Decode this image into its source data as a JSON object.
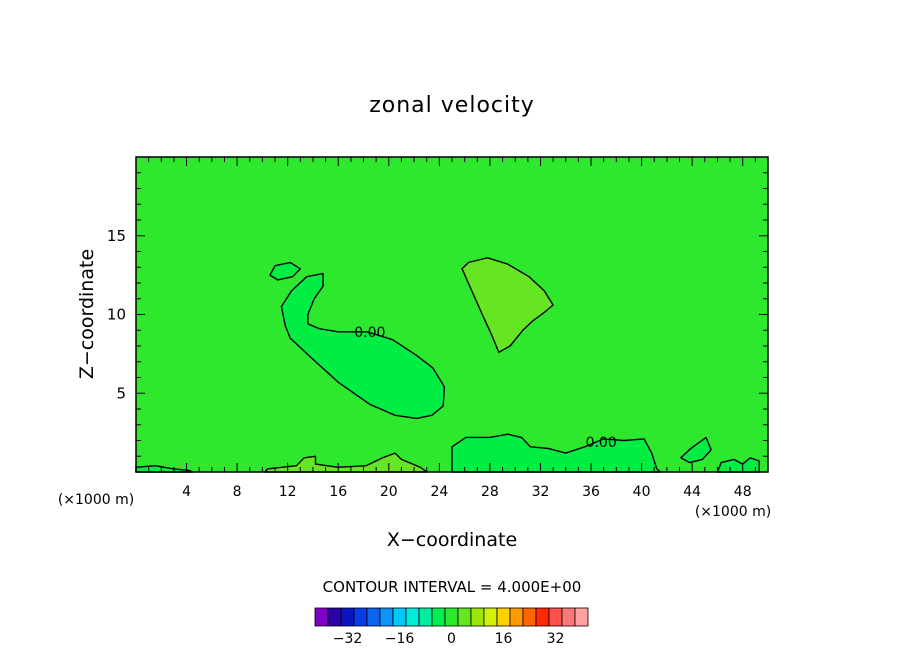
{
  "chart_data": {
    "type": "heatmap",
    "title": "zonal velocity",
    "xlabel": "X−coordinate",
    "ylabel": "Z−coordinate",
    "x_unit_left": "(×1000 m)",
    "x_unit_right": "(×1000 m)",
    "xlim": [
      0,
      50
    ],
    "ylim": [
      0,
      20
    ],
    "x_ticks": [
      4,
      8,
      12,
      16,
      20,
      24,
      28,
      32,
      36,
      40,
      44,
      48
    ],
    "y_ticks": [
      5,
      10,
      15
    ],
    "background_value_color": "#2ee82e",
    "contour_labels": [
      {
        "text": "0.00",
        "x": 18.5,
        "y": 8.9
      },
      {
        "text": "0.00",
        "x": 36.8,
        "y": 1.9
      }
    ],
    "regions": [
      {
        "kind": "negative",
        "color": "#00ee44",
        "points": [
          [
            11.5,
            10.5
          ],
          [
            12.3,
            11.5
          ],
          [
            13.5,
            12.4
          ],
          [
            14.8,
            12.6
          ],
          [
            14.8,
            11.8
          ],
          [
            14.1,
            11.0
          ],
          [
            13.6,
            10.0
          ],
          [
            13.6,
            9.4
          ],
          [
            14.5,
            9.1
          ],
          [
            16.0,
            8.9
          ],
          [
            18.3,
            8.9
          ],
          [
            20.3,
            8.4
          ],
          [
            22.2,
            7.4
          ],
          [
            23.5,
            6.6
          ],
          [
            24.4,
            5.4
          ],
          [
            24.3,
            4.2
          ],
          [
            23.4,
            3.6
          ],
          [
            22.2,
            3.4
          ],
          [
            20.5,
            3.6
          ],
          [
            18.5,
            4.3
          ],
          [
            16.0,
            5.7
          ],
          [
            13.8,
            7.3
          ],
          [
            12.2,
            8.5
          ],
          [
            11.8,
            9.3
          ]
        ]
      },
      {
        "kind": "negative",
        "color": "#00ee44",
        "points": [
          [
            10.6,
            12.5
          ],
          [
            11.0,
            13.1
          ],
          [
            12.2,
            13.3
          ],
          [
            13.0,
            12.9
          ],
          [
            12.4,
            12.4
          ],
          [
            11.2,
            12.2
          ]
        ]
      },
      {
        "kind": "positive",
        "color": "#66e622",
        "points": [
          [
            25.8,
            12.9
          ],
          [
            26.3,
            13.3
          ],
          [
            27.8,
            13.6
          ],
          [
            29.4,
            13.2
          ],
          [
            31.1,
            12.4
          ],
          [
            32.3,
            11.5
          ],
          [
            33.0,
            10.6
          ],
          [
            32.4,
            10.2
          ],
          [
            31.4,
            9.6
          ],
          [
            30.6,
            9.0
          ],
          [
            29.6,
            8.0
          ],
          [
            28.7,
            7.6
          ],
          [
            28.2,
            8.6
          ],
          [
            27.4,
            10.0
          ],
          [
            26.4,
            11.8
          ]
        ]
      },
      {
        "kind": "negative",
        "color": "#00ee44",
        "points": [
          [
            25.0,
            0
          ],
          [
            25.0,
            1.6
          ],
          [
            26.1,
            2.2
          ],
          [
            28.0,
            2.2
          ],
          [
            29.4,
            2.4
          ],
          [
            30.5,
            2.2
          ],
          [
            31.2,
            1.6
          ],
          [
            32.6,
            1.5
          ],
          [
            34.0,
            1.2
          ],
          [
            35.5,
            1.6
          ],
          [
            37.0,
            2.1
          ],
          [
            38.6,
            2.0
          ],
          [
            40.2,
            2.1
          ],
          [
            40.8,
            1.2
          ],
          [
            41.2,
            0.2
          ],
          [
            41.5,
            0
          ]
        ]
      },
      {
        "kind": "negative",
        "color": "#00ee44",
        "points": [
          [
            43.1,
            0.9
          ],
          [
            43.9,
            1.5
          ],
          [
            45.1,
            2.2
          ],
          [
            45.5,
            1.4
          ],
          [
            44.8,
            0.8
          ],
          [
            43.8,
            0.6
          ]
        ]
      },
      {
        "kind": "positive",
        "color": "#66e622",
        "points": [
          [
            10.2,
            0
          ],
          [
            10.4,
            0.2
          ],
          [
            12.7,
            0.4
          ],
          [
            13.3,
            0.9
          ],
          [
            14.2,
            1.0
          ],
          [
            14.2,
            0.5
          ],
          [
            16.0,
            0.3
          ],
          [
            18.2,
            0.4
          ],
          [
            19.5,
            0.9
          ],
          [
            20.5,
            1.2
          ],
          [
            21.0,
            0.8
          ],
          [
            22.5,
            0.3
          ],
          [
            23.0,
            0
          ]
        ]
      },
      {
        "kind": "negative",
        "color": "#00ee44",
        "points": [
          [
            0,
            0
          ],
          [
            0,
            0.3
          ],
          [
            1.5,
            0.4
          ],
          [
            3.0,
            0.2
          ],
          [
            4.2,
            0.1
          ],
          [
            4.5,
            0
          ]
        ]
      },
      {
        "kind": "negative",
        "color": "#00ee44",
        "points": [
          [
            46.0,
            0
          ],
          [
            46.3,
            0.6
          ],
          [
            47.3,
            0.8
          ],
          [
            48.0,
            0.5
          ],
          [
            48.6,
            0.9
          ],
          [
            49.3,
            0.7
          ],
          [
            49.3,
            0
          ]
        ]
      }
    ],
    "colorbar": {
      "label": "CONTOUR INTERVAL = 4.000E+00",
      "interval": 4.0,
      "colors": [
        "#7f00c8",
        "#2a00a8",
        "#0a14c0",
        "#0a3ce6",
        "#0a64f0",
        "#0a96f8",
        "#00c8f8",
        "#00ecd8",
        "#00eca0",
        "#00ee50",
        "#2ee82e",
        "#66e622",
        "#9ee60a",
        "#d2f00a",
        "#ffd200",
        "#ff9a00",
        "#ff6400",
        "#ff2a00",
        "#ff5050",
        "#ff7878",
        "#ffa0a0"
      ],
      "tick_labels": [
        "−32",
        "−16",
        "0",
        "16",
        "32"
      ],
      "tick_values": [
        -32,
        -16,
        0,
        16,
        32
      ],
      "value_range": [
        -42,
        42
      ]
    }
  }
}
